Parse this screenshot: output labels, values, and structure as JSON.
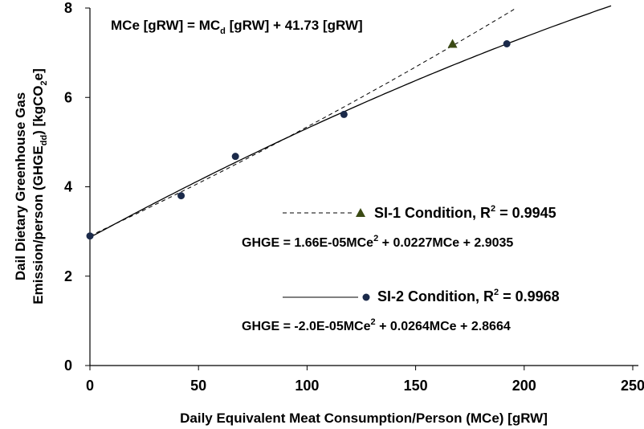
{
  "chart_data": {
    "type": "scatter",
    "title": "",
    "xlabel": "Daily Equivalent Meat Consumption/Person (MCe) [gRW]",
    "ylabel": {
      "line1": "Dail Dietary Greenhouse Gas",
      "line2_pre": "Emission/person (GHGE",
      "line2_sub": "dd",
      "line2_mid": ") [kgCO",
      "line2_sub2": "2",
      "line2_post": "e]"
    },
    "xlim": [
      0,
      250
    ],
    "ylim": [
      0,
      8
    ],
    "xticks": [
      0,
      50,
      100,
      150,
      200,
      250
    ],
    "yticks": [
      0,
      2,
      4,
      6,
      8
    ],
    "grid": false,
    "annotation": {
      "pre": "MCe [gRW] = MC",
      "sub": "d",
      "post": " [gRW] + 41.73 [gRW]"
    },
    "series": [
      {
        "name": "SI-1 Condition",
        "marker": "triangle",
        "color": "#3b4a14",
        "line_style": "dashed",
        "points": [
          {
            "x": 167,
            "y": 7.2
          }
        ],
        "fit": {
          "a": 1.66e-05,
          "b": 0.0227,
          "c": 2.9035,
          "x_range": [
            0,
            196
          ]
        },
        "legend_text": "SI-1 Condition, R",
        "legend_sup": "2",
        "legend_value": " = 0.9945",
        "equation": {
          "pre": "GHGE = 1.66E-05MCe",
          "sup": "2",
          "post": " + 0.0227MCe + 2.9035"
        }
      },
      {
        "name": "SI-2 Condition",
        "marker": "circle",
        "color": "#1b2a4a",
        "line_style": "solid",
        "points": [
          {
            "x": 0,
            "y": 2.9
          },
          {
            "x": 42,
            "y": 3.8
          },
          {
            "x": 67,
            "y": 4.68
          },
          {
            "x": 117,
            "y": 5.62
          },
          {
            "x": 192,
            "y": 7.2
          }
        ],
        "fit": {
          "a": -2e-05,
          "b": 0.0264,
          "c": 2.8664,
          "x_range": [
            0,
            240
          ]
        },
        "legend_text": "SI-2 Condition, R",
        "legend_sup": "2",
        "legend_value": " = 0.9968",
        "equation": {
          "pre": "GHGE = -2.0E-05MCe",
          "sup": "2",
          "post": " + 0.0264MCe + 2.8664"
        }
      }
    ]
  }
}
